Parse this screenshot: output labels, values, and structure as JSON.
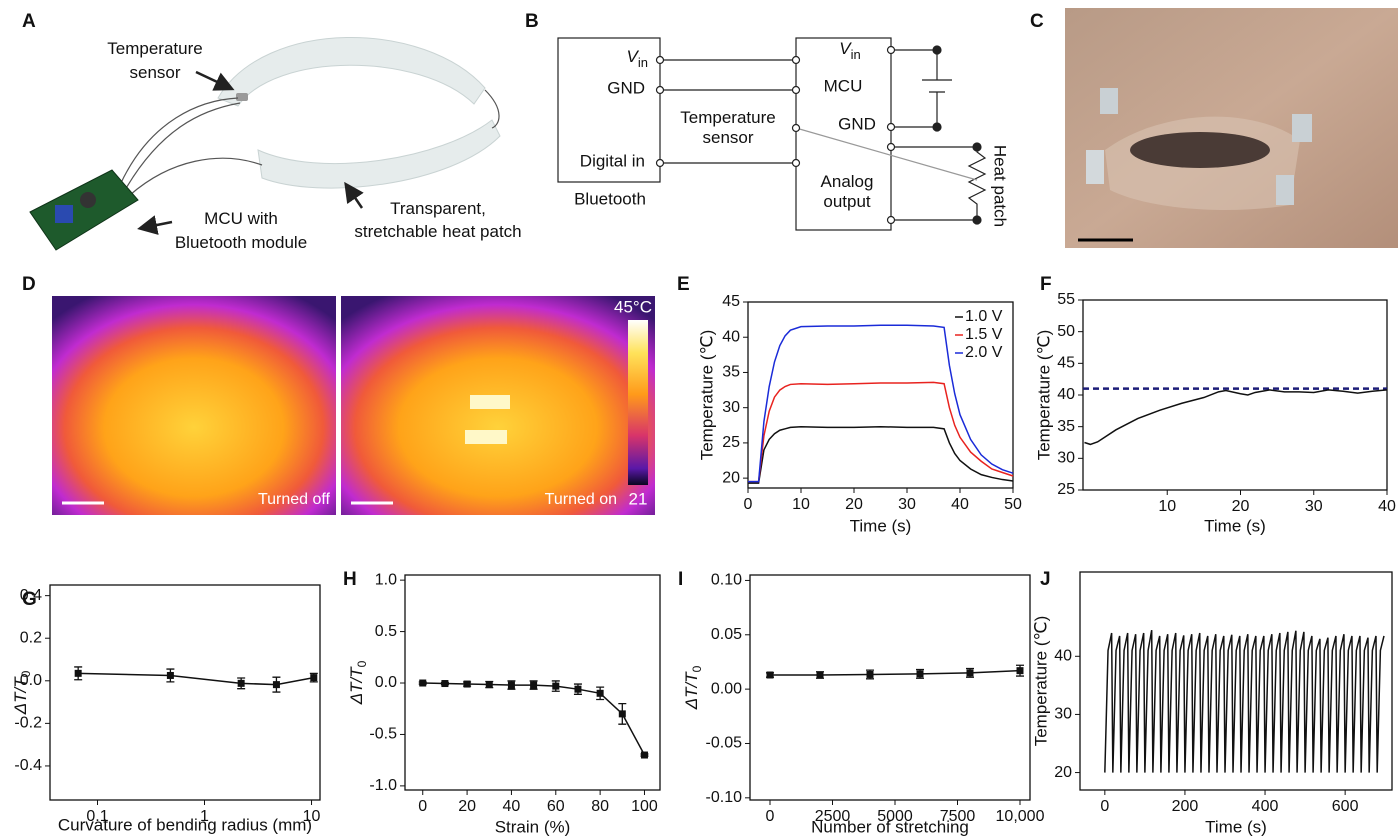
{
  "panel_a": {
    "label": "A",
    "temperature_sensor": [
      "Temperature",
      "sensor"
    ],
    "mcu": [
      "MCU with",
      "Bluetooth module"
    ],
    "heat_patch": [
      "Transparent,",
      "stretchable heat patch"
    ]
  },
  "panel_b": {
    "label": "B",
    "vin_left": [
      "V",
      "in"
    ],
    "gnd_left": "GND",
    "digital_in": "Digital in",
    "bluetooth": "Bluetooth",
    "temperature_sensor": [
      "Temperature",
      "sensor"
    ],
    "vin_right": [
      "V",
      "in"
    ],
    "mcu": "MCU",
    "gnd_right": "GND",
    "analog_output": [
      "Analog",
      "output"
    ],
    "heat_patch": "Heat patch"
  },
  "panel_c": {
    "label": "C"
  },
  "panel_d": {
    "label": "D",
    "off": "Turned off",
    "on": "Turned on",
    "colorbar_max": {
      "value": 45,
      "label": "45°C"
    },
    "colorbar_min": 21
  },
  "chart_data": [
    {
      "type": "line",
      "panel": "E",
      "xlabel": "Time (s)",
      "ylabel": "Temperature (℃)",
      "legend": "upper right",
      "x": [
        0,
        2,
        3,
        4,
        5,
        6,
        7,
        8,
        10,
        15,
        20,
        25,
        30,
        35,
        37,
        38,
        39,
        40,
        42,
        44,
        46,
        48,
        50
      ],
      "series": [
        {
          "name": "1.0 V",
          "color": "#111111",
          "values": [
            19.3,
            19.3,
            24,
            25.5,
            26.3,
            26.8,
            27,
            27.2,
            27.3,
            27.2,
            27.2,
            27.3,
            27.2,
            27.2,
            27,
            25,
            23.5,
            22.5,
            21.3,
            20.5,
            20.1,
            19.8,
            19.6
          ]
        },
        {
          "name": "1.5 V",
          "color": "#e8231f",
          "values": [
            19.5,
            19.5,
            26,
            29.5,
            31.5,
            32.5,
            33,
            33.3,
            33.4,
            33.3,
            33.4,
            33.5,
            33.5,
            33.6,
            33.4,
            30,
            27.5,
            25.8,
            23.7,
            22.4,
            21.3,
            20.8,
            20.3
          ]
        },
        {
          "name": "2.0 V",
          "color": "#1a2bd8",
          "values": [
            19.5,
            19.5,
            28,
            33,
            36.5,
            38.8,
            40.2,
            41,
            41.5,
            41.6,
            41.6,
            41.7,
            41.7,
            41.6,
            41.4,
            36,
            32,
            29,
            25.5,
            23.3,
            22,
            21.2,
            20.7
          ]
        }
      ],
      "xlim": [
        0,
        50
      ],
      "ylim": [
        18.6,
        45
      ],
      "xticks": [
        0,
        10,
        20,
        30,
        40,
        50
      ],
      "yticks": [
        20,
        25,
        30,
        35,
        40,
        45
      ]
    },
    {
      "type": "line",
      "panel": "F",
      "xlabel": "Time (s)",
      "ylabel": "Temperature (℃)",
      "x": [
        -1.3,
        -0.5,
        0.5,
        3,
        6,
        9,
        12,
        15,
        17,
        18,
        20,
        21,
        22,
        24,
        26,
        28,
        30,
        32,
        34,
        36,
        38,
        40
      ],
      "series": [
        {
          "color": "#111111",
          "values": [
            32.5,
            32.2,
            32.6,
            34.5,
            36.3,
            37.6,
            38.7,
            39.6,
            40.5,
            40.7,
            40.2,
            40.0,
            40.4,
            40.8,
            40.5,
            40.5,
            40.4,
            40.8,
            40.6,
            40.3,
            40.6,
            40.8
          ]
        }
      ],
      "reference_line": {
        "value": 41,
        "color": "#1c1c78"
      },
      "xlim": [
        -1.5,
        40
      ],
      "ylim": [
        25,
        55
      ],
      "xticks": [
        10,
        20,
        30,
        40
      ],
      "yticks": [
        25,
        30,
        35,
        40,
        45,
        50,
        55
      ]
    },
    {
      "type": "line",
      "panel": "G",
      "xlabel": "Curvature of bending radius (mm)",
      "ylabel": [
        "ΔT/T",
        "0"
      ],
      "xscale": "log",
      "markers": true,
      "x": [
        0.066,
        0.48,
        2.2,
        4.7,
        10.5
      ],
      "series": [
        {
          "color": "#111111",
          "values": [
            0.035,
            0.025,
            -0.012,
            -0.018,
            0.015
          ],
          "errors": [
            0.03,
            0.03,
            0.025,
            0.035,
            0.02
          ]
        }
      ],
      "xlim": [
        0.036,
        12
      ],
      "ylim": [
        -0.56,
        0.45
      ],
      "xticks": [
        0.1,
        1,
        10
      ],
      "yticks": [
        -0.4,
        -0.2,
        {
          "value": 0,
          "label": "0.0"
        },
        0.2,
        0.4
      ]
    },
    {
      "type": "line",
      "panel": "H",
      "xlabel": "Strain (%)",
      "ylabel": [
        "ΔT/T",
        "0"
      ],
      "markers": true,
      "x": [
        0,
        10,
        20,
        30,
        40,
        50,
        60,
        70,
        80,
        90,
        100
      ],
      "series": [
        {
          "color": "#111111",
          "values": [
            0,
            -0.005,
            -0.01,
            -0.015,
            -0.02,
            -0.02,
            -0.03,
            -0.06,
            -0.1,
            -0.3,
            -0.7
          ],
          "errors": [
            0.01,
            0.01,
            0.02,
            0.03,
            0.04,
            0.04,
            0.05,
            0.05,
            0.06,
            0.1,
            0.01
          ]
        }
      ],
      "xlim": [
        -8,
        107
      ],
      "ylim": [
        -1.04,
        1.05
      ],
      "xticks": [
        0,
        20,
        40,
        60,
        80,
        100
      ],
      "yticks": [
        {
          "value": -1,
          "label": "-1.0"
        },
        -0.5,
        {
          "value": 0,
          "label": "0.0"
        },
        0.5,
        {
          "value": 1,
          "label": "1.0"
        }
      ]
    },
    {
      "type": "line",
      "panel": "I",
      "xlabel": "Number of stretching",
      "ylabel": [
        "ΔT/T",
        "0"
      ],
      "markers": true,
      "x": [
        0,
        2000,
        4000,
        6000,
        8000,
        10000
      ],
      "series": [
        {
          "color": "#111111",
          "values": [
            0.013,
            0.013,
            0.0135,
            0.014,
            0.015,
            0.017
          ],
          "errors": [
            0.002,
            0.003,
            0.004,
            0.004,
            0.004,
            0.005
          ]
        }
      ],
      "xlim": [
        -800,
        10400
      ],
      "ylim": [
        -0.102,
        0.105
      ],
      "xticks": [
        0,
        2500,
        5000,
        7500,
        {
          "value": 10000,
          "label": "10,000"
        }
      ],
      "yticks": [
        {
          "value": -0.1,
          "label": "-0.10"
        },
        -0.05,
        {
          "value": 0,
          "label": "0.00"
        },
        0.05,
        {
          "value": 0.1,
          "label": "0.10"
        }
      ]
    },
    {
      "type": "line",
      "panel": "J",
      "xlabel": "Time (s)",
      "ylabel": "Temperature (℃)",
      "x": [
        0,
        8,
        17,
        20,
        28,
        37,
        40,
        48,
        57,
        60,
        68,
        77,
        80,
        88,
        97,
        100,
        108,
        117,
        120,
        128,
        137,
        140,
        148,
        157,
        160,
        168,
        177,
        180,
        188,
        197,
        200,
        208,
        217,
        220,
        228,
        237,
        240,
        248,
        257,
        260,
        268,
        277,
        280,
        288,
        297,
        300,
        308,
        317,
        320,
        328,
        337,
        340,
        348,
        357,
        360,
        368,
        377,
        380,
        388,
        397,
        400,
        408,
        417,
        420,
        428,
        437,
        440,
        448,
        457,
        460,
        468,
        477,
        480,
        488,
        497,
        500,
        508,
        517,
        520,
        528,
        537,
        540,
        548,
        557,
        560,
        568,
        577,
        580,
        588,
        597,
        600,
        608,
        617,
        620,
        628,
        637,
        640,
        648,
        657,
        660,
        668,
        677,
        680,
        688,
        697
      ],
      "series": [
        {
          "color": "#111111",
          "values": [
            20,
            41,
            44,
            20,
            41,
            43.5,
            20,
            41,
            44,
            20,
            41,
            43.8,
            20,
            41,
            44,
            20,
            41,
            44.5,
            20,
            41,
            43.5,
            20,
            41,
            43.8,
            20,
            41,
            44,
            20,
            41,
            43.6,
            20,
            41,
            43.8,
            20,
            41,
            44,
            20,
            41,
            43.5,
            20,
            41,
            43.8,
            20,
            41,
            43.5,
            20,
            41,
            43.7,
            20,
            41,
            43.5,
            20,
            41,
            43.8,
            20,
            41,
            43.5,
            20,
            41,
            43.5,
            20,
            41,
            43.8,
            20,
            41,
            44,
            20,
            41,
            44.2,
            20,
            41,
            44.4,
            20,
            41,
            44.2,
            20,
            41,
            43.5,
            20,
            41,
            43,
            20,
            41,
            43.2,
            20,
            41,
            43.5,
            20,
            41,
            43.8,
            20,
            41,
            43.5,
            20,
            41,
            43.5,
            20,
            41,
            43.2,
            20,
            41,
            43.5,
            20,
            41,
            43.5
          ]
        }
      ],
      "xlim": [
        -62,
        717
      ],
      "ylim": [
        17,
        54.5
      ],
      "xticks": [
        0,
        200,
        400,
        600
      ],
      "yticks": [
        20,
        30,
        40
      ]
    }
  ]
}
